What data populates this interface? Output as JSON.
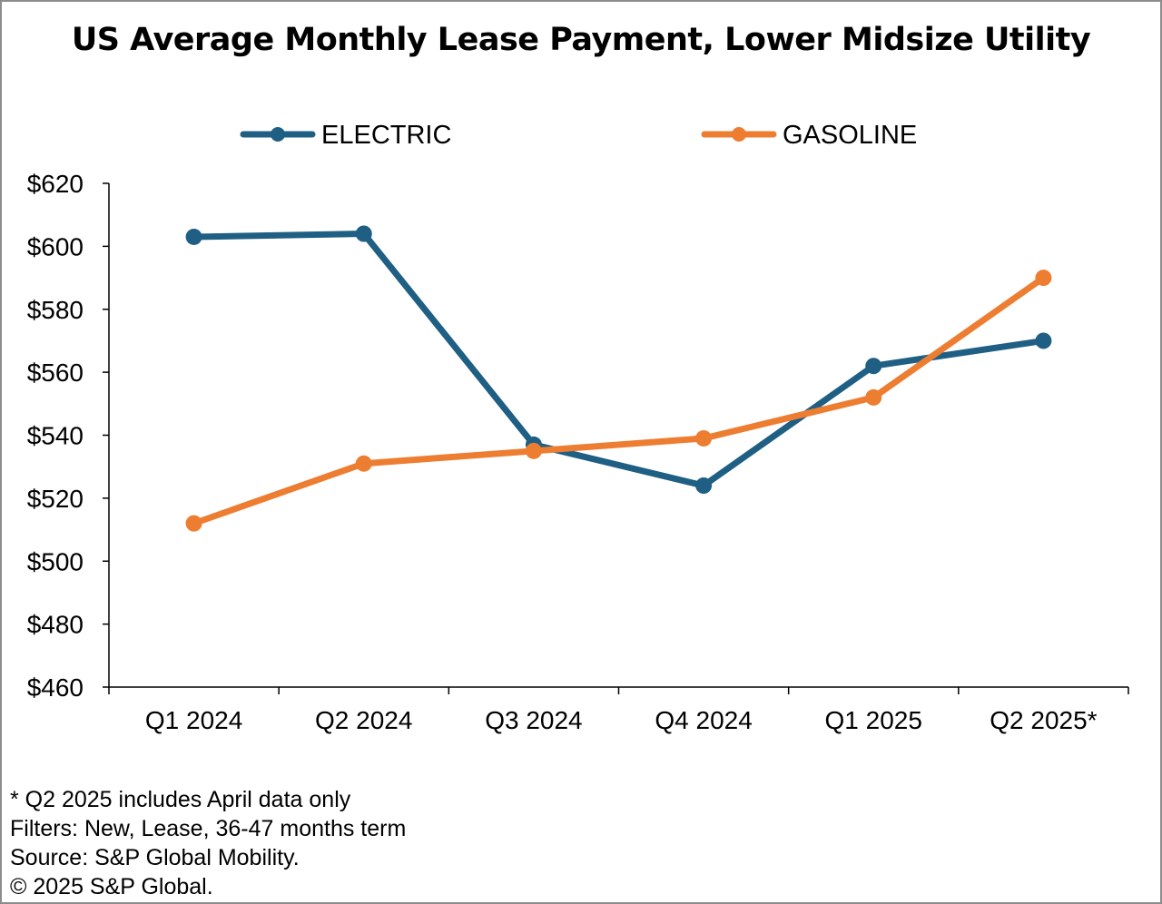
{
  "chart_data": {
    "type": "line",
    "title": "US Average Monthly Lease Payment, Lower Midsize Utility",
    "categories": [
      "Q1 2024",
      "Q2 2024",
      "Q3 2024",
      "Q4 2024",
      "Q1 2025",
      "Q2 2025*"
    ],
    "series": [
      {
        "name": "ELECTRIC",
        "color": "#1f5f84",
        "values": [
          603,
          604,
          537,
          524,
          562,
          570
        ]
      },
      {
        "name": "GASOLINE",
        "color": "#ed7d31",
        "values": [
          512,
          531,
          535,
          539,
          552,
          590
        ]
      }
    ],
    "ylim": [
      460,
      620
    ],
    "yticks": [
      460,
      480,
      500,
      520,
      540,
      560,
      580,
      600,
      620
    ],
    "ytick_labels": [
      "$460",
      "$480",
      "$500",
      "$520",
      "$540",
      "$560",
      "$580",
      "$600",
      "$620"
    ],
    "xlabel": "",
    "ylabel": "",
    "legend_position": "top",
    "grid": false
  },
  "notes": [
    "* Q2 2025 includes April data only",
    "Filters: New, Lease, 36-47 months term",
    "Source: S&P Global Mobility.",
    "© 2025 S&P Global."
  ]
}
